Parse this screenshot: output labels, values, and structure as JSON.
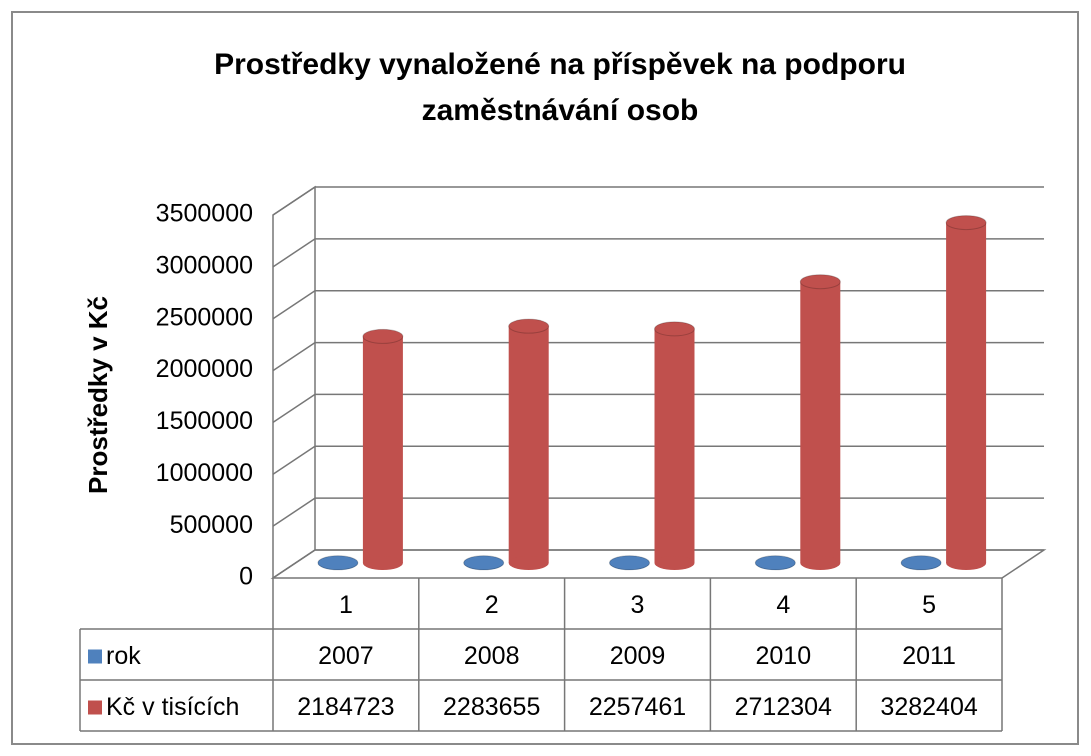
{
  "chart_data": {
    "type": "bar3d",
    "title": "Prostředky vynaložené na příspěvek na podporu zaměstnávání osob",
    "y_label": "Prostředky v Kč",
    "categories": [
      "1",
      "2",
      "3",
      "4",
      "5"
    ],
    "series": [
      {
        "name": "rok",
        "color": "#4f81bd",
        "values": [
          2007,
          2008,
          2009,
          2010,
          2011
        ]
      },
      {
        "name": "Kč v tisících",
        "color": "#c0504d",
        "values": [
          2184723,
          2283655,
          2257461,
          2712304,
          3282404
        ]
      }
    ],
    "ylim": [
      0,
      3500000
    ],
    "yticks": [
      0,
      500000,
      1000000,
      1500000,
      2000000,
      2500000,
      3000000,
      3500000
    ],
    "grid": true
  }
}
